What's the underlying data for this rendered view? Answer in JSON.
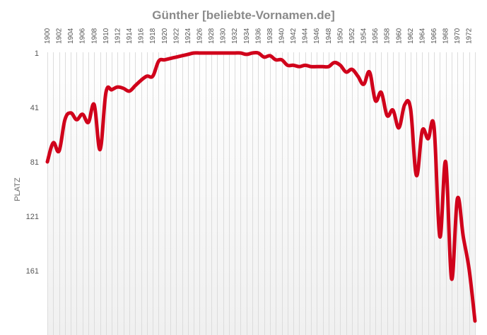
{
  "chart_data": {
    "type": "line",
    "title": "Günther [beliebte-Vornamen.de]",
    "ylabel": "PLATZ",
    "xlabel": "",
    "y_inverted": true,
    "ylim": [
      1,
      198
    ],
    "xlim": [
      1900,
      1973
    ],
    "x_tick_labels": [
      "1900",
      "1902",
      "1904",
      "1906",
      "1908",
      "1910",
      "1912",
      "1914",
      "1916",
      "1918",
      "1920",
      "1922",
      "1924",
      "1926",
      "1928",
      "1930",
      "1932",
      "1934",
      "1936",
      "1938",
      "1940",
      "1942",
      "1944",
      "1946",
      "1948",
      "1950",
      "1952",
      "1954",
      "1956",
      "1958",
      "1960",
      "1962",
      "1964",
      "1966",
      "1968",
      "1970",
      "1972"
    ],
    "y_tick_labels": [
      "1",
      "41",
      "81",
      "121",
      "161"
    ],
    "y_ticks": [
      1,
      41,
      81,
      121,
      161
    ],
    "grid": "vertical lines every year",
    "line_color": "#d0021b",
    "series": [
      {
        "x": [
          1900,
          1901,
          1902,
          1903,
          1904,
          1905,
          1906,
          1907,
          1908,
          1909,
          1910,
          1911,
          1912,
          1913,
          1914,
          1915,
          1916,
          1917,
          1918,
          1919,
          1920,
          1921,
          1922,
          1923,
          1924,
          1925,
          1926,
          1927,
          1928,
          1929,
          1930,
          1931,
          1932,
          1933,
          1934,
          1935,
          1936,
          1937,
          1938,
          1939,
          1940,
          1941,
          1942,
          1943,
          1944,
          1945,
          1946,
          1947,
          1948,
          1949,
          1950,
          1951,
          1952,
          1953,
          1954,
          1955,
          1956,
          1957,
          1958,
          1959,
          1960,
          1961,
          1962,
          1963,
          1964,
          1965,
          1966,
          1967,
          1968,
          1969,
          1970,
          1971,
          1972,
          1973
        ],
        "values": [
          81,
          67,
          73,
          50,
          45,
          50,
          46,
          52,
          39,
          72,
          30,
          28,
          26,
          27,
          29,
          25,
          21,
          18,
          18,
          7,
          6,
          5,
          4,
          3,
          2,
          1,
          1,
          1,
          1,
          1,
          1,
          1,
          1,
          1,
          2,
          1,
          1,
          4,
          3,
          6,
          6,
          10,
          10,
          11,
          10,
          11,
          11,
          11,
          11,
          8,
          10,
          15,
          13,
          18,
          24,
          15,
          36,
          30,
          47,
          43,
          56,
          39,
          42,
          91,
          58,
          64,
          55,
          136,
          81,
          167,
          108,
          136,
          160,
          198
        ]
      }
    ]
  }
}
